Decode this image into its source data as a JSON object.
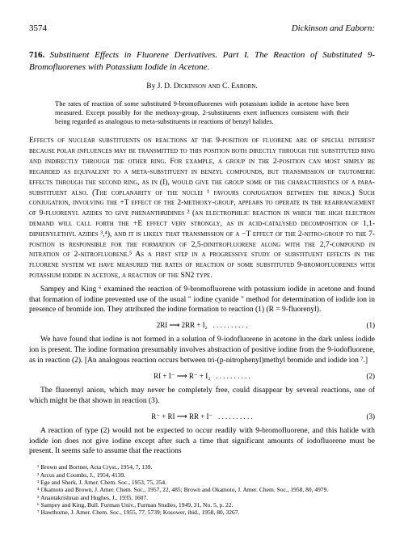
{
  "header": {
    "page_number": "3574",
    "running_head": "Dickinson and Eaborn:"
  },
  "article": {
    "number": "716.",
    "title": "Substituent Effects in Fluorene Derivatives. Part I. The Reaction of Substituted 9-Bromofluorenes with Potassium Iodide in Acetone.",
    "authors_prefix": "By ",
    "authors": "J. D. Dickinson and C. Eaborn."
  },
  "abstract": "The rates of reaction of some substituted 9-bromofluorenes with potassium iodide in acetone have been measured. Except possibly for the methoxy-group, 2-substituents exert influences consistent with their being regarded as analogous to meta-substituents in reactions of benzyl halides.",
  "body": {
    "p1": "Effects of nuclear substituents on reactions at the 9-position of fluorene are of special interest because polar influences may be transmitted to this position both directly through the substituted ring and indirectly through the other ring. For example, a group in the 2-position can most simply be regarded as equivalent to a meta-substituent in benzyl compounds, but transmission of tautomeric effects through the second ring, as in (I), would give the group some of the characteristics of a para-substituent also. (The coplanarity of the nuclei ¹ favours conjugation between the rings.) Such conjugation, involving the +T effect of the 2-methoxy-group, appears to operate in the rearrangement of 9-fluorenyl azides to give phenanthridines ² (an electrophilic reaction in which the high electron demand will call forth the +E effect very strongly, as in acid-catalysed decomposition of 1,1-diphenylethyl azides ³,⁴), and it is likely that transmission of a −T effect of the 2-nitro-group to the 7-position is responsible for the formation of 2,5-dinitrofluorene along with the 2,7-compound in nitration of 2-nitrofluorene.⁵ As a first step in a progressive study of substituent effects in the fluorene system we have measured the rates of reaction of some substituted 9-bromofluorenes with potassium iodide in acetone, a reaction of the SN2 type.",
    "p2": "Sampey and King ⁶ examined the reaction of 9-bromofluorene with potassium iodide in acetone and found that formation of iodine prevented use of the usual \" iodine cyanide \" method for determination of iodide ion in presence of bromide ion. They attributed the iodine formation to reaction (1) (R = 9-fluorenyl).",
    "p3": "We have found that iodine is not formed in a solution of 9-iodofluorene in acetone in the dark unless iodide ion is present. The iodine formation presumably involves abstraction of positive iodine from the 9-iodofluorene, as in reaction (2). [An analogous reaction occurs between tri-(p-nitrophenyl)methyl bromide and iodide ion ⁷.]",
    "p4": "The fluorenyl anion, which may never be completely free, could disappear by several reactions, one of which might be that shown in reaction (3).",
    "p5": "A reaction of type (2) would not be expected to occur readily with 9-bromofluorene, and this halide with iodide ion does not give iodine except after such a time that significant amounts of iodofluorene must be present. It seems safe to assume that the reactions"
  },
  "equations": {
    "eq1": {
      "body": "2RI ⟶ 2RR + I₂",
      "dots": ". . . . . . . . . .",
      "num": "(1)"
    },
    "eq2": {
      "body": "RI + I⁻ ⟶ R⁻ + I₂",
      "dots": ". . . . . . . . . .",
      "num": "(2)"
    },
    "eq3": {
      "body": "R⁻ + RI ⟶ RR + I⁻",
      "dots": ". . . . . . . . . .",
      "num": "(3)"
    }
  },
  "refs": {
    "r1": "¹ Brown and Bortner, Acta Cryst., 1954, 7, 139.",
    "r2": "² Arcus and Coombs, J., 1954, 4139.",
    "r3": "³ Ege and Sherk, J. Amer. Chem. Soc., 1953, 75, 354.",
    "r4": "⁴ Okamoto and Brown, J. Amer. Chem. Soc., 1957, 22, 485; Brown and Okamoto, J. Amer. Chem. Soc., 1958, 80, 4979.",
    "r5": "⁵ Anantakrishnan and Hughes, J., 1935, 1607.",
    "r6": "⁶ Sampey and King, Bull. Furman Univ., Furman Studies, 1949, 31, No. 5, p. 22.",
    "r7": "⁷ Hawthorne, J. Amer. Chem. Soc., 1955, 77, 5739; Kosower, ibid., 1958, 80, 3267."
  }
}
